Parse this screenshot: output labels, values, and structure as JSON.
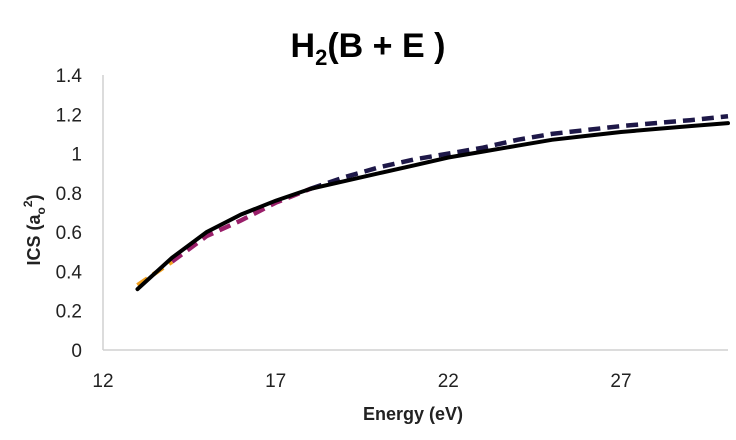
{
  "chart_data": {
    "type": "line",
    "title": "H",
    "title_sub": "2",
    "title_rest": "(B + E )",
    "xlabel": "Energy (eV)",
    "ylabel_main": "ICS (a",
    "ylabel_sub": "o",
    "ylabel_sup": "2",
    "ylabel_end": ")",
    "xlim": [
      12,
      30.1
    ],
    "ylim": [
      0,
      1.4
    ],
    "xticks": [
      12,
      17,
      22,
      27
    ],
    "yticks": [
      0,
      0.2,
      0.4,
      0.6,
      0.8,
      1,
      1.2,
      1.4
    ],
    "ytick_labels": [
      "0",
      "0.2",
      "0.4",
      "0.6",
      "0.8",
      "1",
      "1.2",
      "1.4"
    ],
    "grid": false,
    "series": [
      {
        "style": "dashed",
        "color": "#f0a020",
        "x": [
          13,
          13.5,
          14
        ],
        "y": [
          0.33,
          0.39,
          0.45
        ]
      },
      {
        "style": "dashed",
        "color": "#9a1f6a",
        "x": [
          14,
          15,
          16,
          17,
          18
        ],
        "y": [
          0.45,
          0.58,
          0.66,
          0.75,
          0.82
        ]
      },
      {
        "style": "dashed",
        "color": "#1e1848",
        "x": [
          18,
          19,
          20,
          21,
          22,
          23,
          24,
          25,
          26,
          27,
          28,
          29,
          30.1
        ],
        "y": [
          0.82,
          0.88,
          0.93,
          0.97,
          1.0,
          1.03,
          1.07,
          1.1,
          1.12,
          1.14,
          1.155,
          1.17,
          1.19
        ]
      },
      {
        "style": "solid",
        "color": "#000000",
        "x": [
          13,
          14,
          15,
          16,
          17,
          18,
          19,
          20,
          21,
          22,
          23,
          24,
          25,
          26,
          27,
          28,
          29,
          30.1
        ],
        "y": [
          0.31,
          0.47,
          0.6,
          0.69,
          0.76,
          0.82,
          0.86,
          0.9,
          0.94,
          0.98,
          1.01,
          1.04,
          1.07,
          1.09,
          1.11,
          1.125,
          1.14,
          1.155
        ]
      }
    ]
  }
}
